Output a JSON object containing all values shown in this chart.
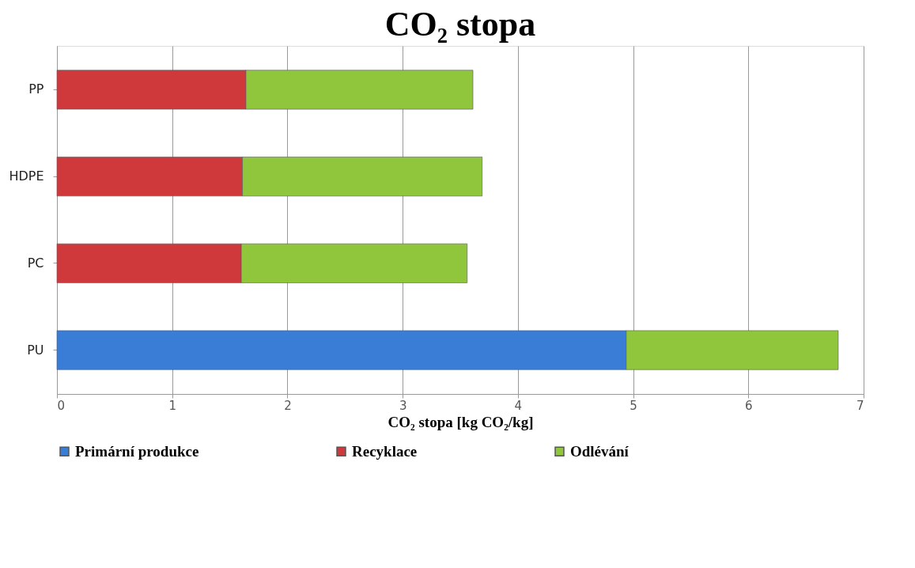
{
  "chart_data": {
    "type": "bar",
    "orientation": "horizontal",
    "stacked": true,
    "title": "CO₂ stopa",
    "xlabel": "CO₂ stopa [kg CO₂/kg]",
    "categories": [
      "PP",
      "HDPE",
      "PC",
      "PU"
    ],
    "series": [
      {
        "name": "Primární produkce",
        "color": "#3a7dd6",
        "values": [
          null,
          null,
          null,
          4.94
        ]
      },
      {
        "name": "Recyklace",
        "color": "#d0393c",
        "values": [
          1.64,
          1.61,
          1.6,
          null
        ]
      },
      {
        "name": "Odlévání",
        "color": "#8fc63c",
        "values": [
          1.97,
          2.08,
          1.96,
          1.84
        ]
      }
    ],
    "xlim": [
      0,
      7
    ],
    "xticks": [
      0,
      1,
      2,
      3,
      4,
      5,
      6,
      7
    ],
    "grid": "x",
    "legend": "bottom"
  }
}
